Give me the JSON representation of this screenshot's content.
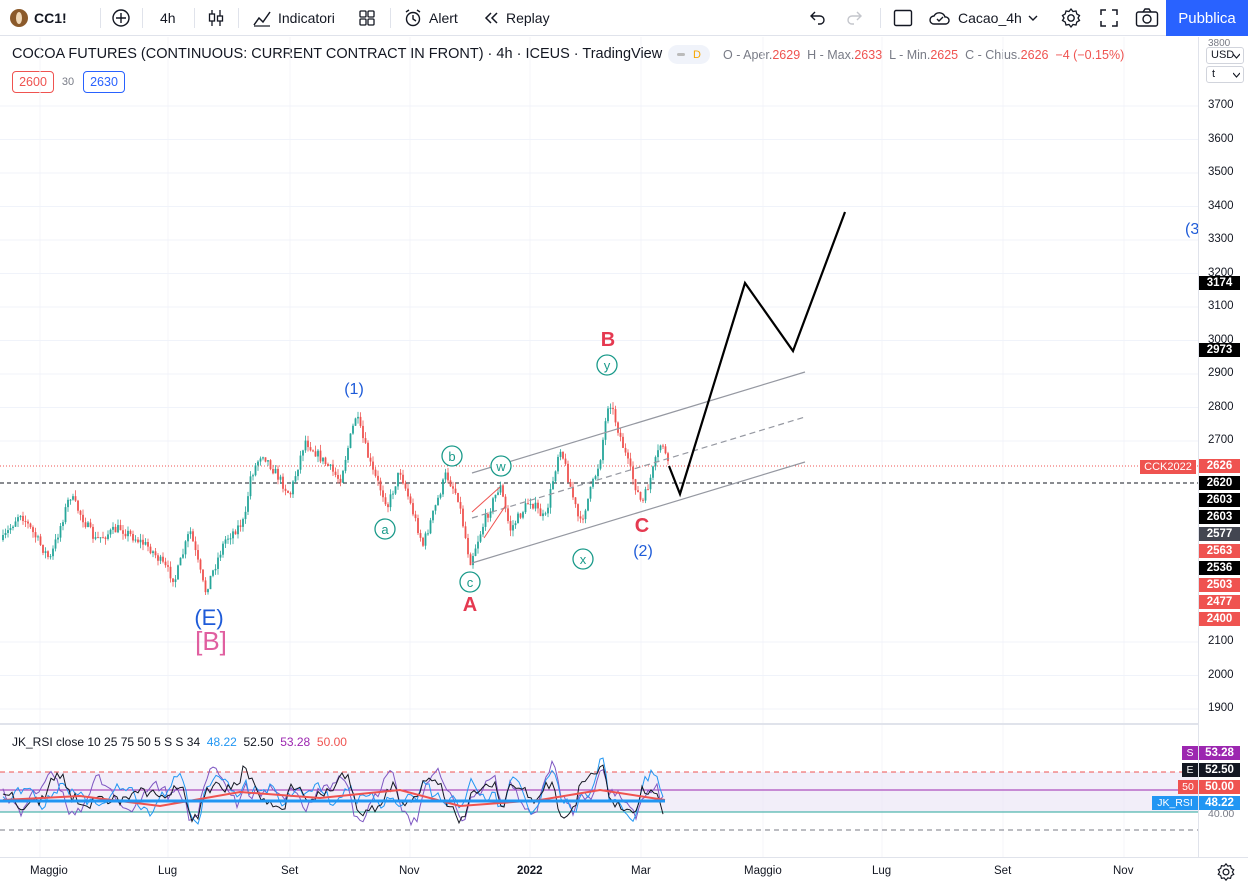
{
  "topbar": {
    "symbol": "CC1!",
    "interval": "4h",
    "indicators": "Indicatori",
    "alert": "Alert",
    "replay": "Replay",
    "layout_name": "Cacao_4h",
    "publish": "Pubblica"
  },
  "legend": {
    "title": "COCOA FUTURES (CONTINUOUS: CURRENT CONTRACT IN FRONT)",
    "interval": "4h",
    "exchange": "ICEUS",
    "source": "TradingView",
    "badge": "D",
    "open_key": "O - Aper.",
    "open": "2629",
    "high_key": "H - Max.",
    "high": "2633",
    "low_key": "L - Min.",
    "low": "2625",
    "close_key": "C - Chius.",
    "close": "2626",
    "change": "−4 (−0.15%)"
  },
  "pills": {
    "left": "2600",
    "mid": "30",
    "right": "2630"
  },
  "price_axis": {
    "currency": "USD",
    "mode": "t",
    "top_tick": "3800",
    "ticks": [
      {
        "label": "3700",
        "value": 3700
      },
      {
        "label": "3600",
        "value": 3600
      },
      {
        "label": "3500",
        "value": 3500
      },
      {
        "label": "3400",
        "value": 3400
      },
      {
        "label": "3300",
        "value": 3300
      },
      {
        "label": "3200",
        "value": 3200
      },
      {
        "label": "3100",
        "value": 3100
      },
      {
        "label": "3000",
        "value": 3000
      },
      {
        "label": "2900",
        "value": 2900
      },
      {
        "label": "2800",
        "value": 2800
      },
      {
        "label": "2700",
        "value": 2700
      },
      {
        "label": "2100",
        "value": 2100
      },
      {
        "label": "2000",
        "value": 2000
      },
      {
        "label": "1900",
        "value": 1900
      }
    ],
    "labels": [
      {
        "text": "3174",
        "value": 3174,
        "color": "#000000"
      },
      {
        "text": "2973",
        "value": 2973,
        "color": "#000000"
      },
      {
        "text": "2626",
        "value": 2626,
        "color": "#ef5350"
      },
      {
        "text": "2620",
        "value": 2620,
        "color": "#000000"
      },
      {
        "text": "2603",
        "value": 2603,
        "color": "#000000"
      },
      {
        "text": "2603",
        "value": 2603,
        "color": "#000000"
      },
      {
        "text": "2577",
        "value": 2577,
        "color": "#434651"
      },
      {
        "text": "2563",
        "value": 2563,
        "color": "#ef5350"
      },
      {
        "text": "2536",
        "value": 2536,
        "color": "#000000"
      },
      {
        "text": "2503",
        "value": 2503,
        "color": "#ef5350"
      },
      {
        "text": "2477",
        "value": 2477,
        "color": "#ef5350"
      },
      {
        "text": "2400",
        "value": 2400,
        "color": "#ef5350"
      }
    ],
    "contract_tag": "CCK2022"
  },
  "waves": {
    "E": "(E)",
    "B_big": "[B]",
    "w1": "(1)",
    "a": "a",
    "b": "b",
    "c": "c",
    "A": "A",
    "w": "w",
    "x": "x",
    "y": "y",
    "B": "B",
    "C": "C",
    "w2": "(2)",
    "w3": "(3"
  },
  "rsi": {
    "legend_name": "JK_RSI close 10 25 75 50 5 S S 34",
    "v1": "48.22",
    "v2": "52.50",
    "v3": "53.28",
    "v4": "50.00",
    "axis_tick": "40.00",
    "labels": [
      {
        "key": "S",
        "text": "53.28",
        "color": "#9c27b0"
      },
      {
        "key": "E",
        "text": "52.50",
        "color": "#131722"
      },
      {
        "key": "50",
        "text": "50.00",
        "color": "#ef5350"
      },
      {
        "key": "JK_RSI",
        "text": "48.22",
        "color": "#2196f3"
      }
    ]
  },
  "time_axis": [
    "Maggio",
    "Lug",
    "Set",
    "Nov",
    "2022",
    "Mar",
    "Maggio",
    "Lug",
    "Set",
    "Nov"
  ],
  "colors": {
    "accent": "#2962ff",
    "wave_blue": "#1e5bd8",
    "wave_red": "#e53950",
    "wave_teal": "#1a9a8a",
    "wave_pink": "#e05fa0"
  }
}
